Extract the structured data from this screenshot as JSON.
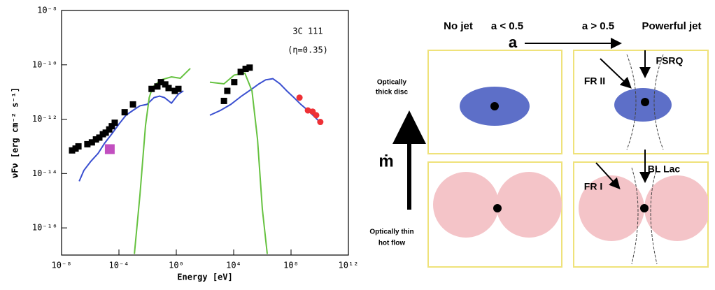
{
  "chart_data": {
    "type": "scatter",
    "title": "3C 111",
    "annotation": "(η=0.35)",
    "x_label": "Energy [eV]",
    "y_label": "νFν [erg cm⁻² s⁻¹]",
    "log_x": true,
    "log_y": true,
    "xlim": [
      1e-08,
      1000000000000.0
    ],
    "ylim": [
      1e-17,
      1e-08
    ],
    "xticks": [
      {
        "value": 1e-08,
        "label": "10⁻⁸"
      },
      {
        "value": 0.0001,
        "label": "10⁻⁴"
      },
      {
        "value": 1,
        "label": "10⁰"
      },
      {
        "value": 10000.0,
        "label": "10⁴"
      },
      {
        "value": 100000000.0,
        "label": "10⁸"
      },
      {
        "value": 1000000000000.0,
        "label": "10¹²"
      }
    ],
    "yticks": [
      {
        "value": 1e-16,
        "label": "10⁻¹⁶"
      },
      {
        "value": 1e-14,
        "label": "10⁻¹⁴"
      },
      {
        "value": 1e-12,
        "label": "10⁻¹²"
      },
      {
        "value": 1e-10,
        "label": "10⁻¹⁰"
      },
      {
        "value": 1e-08,
        "label": "10⁻⁸"
      }
    ],
    "series": [
      {
        "marker": "line",
        "color": "#3a4fd0",
        "x": [
          1.7e-07,
          3.6e-07,
          1.1e-06,
          3.5e-06,
          1e-05,
          3.2e-05,
          0.0001,
          0.00031,
          0.00095,
          0.0029,
          0.0089,
          0.028,
          0.068,
          0.15,
          0.46,
          1.4,
          3.1,
          null,
          220,
          1200,
          6300,
          35000,
          190000,
          580000,
          1700000.0,
          5400000.0,
          17000000.0,
          51000000.0,
          160000000.0,
          480000000.0,
          1500000000.0,
          4600000000.0,
          14000000000.0
        ],
        "values": [
          5.2e-15,
          1.3e-14,
          2.8e-14,
          5.5e-14,
          1.3e-13,
          2.9e-13,
          6.6e-13,
          1.4e-12,
          2.1e-12,
          3.1e-12,
          3.5e-12,
          6.2e-12,
          7.1e-12,
          6.2e-12,
          3.9e-12,
          8.3e-12,
          1.1e-11,
          null,
          1.4e-12,
          2.1e-12,
          3.5e-12,
          7.1e-12,
          1.3e-11,
          2e-11,
          2.8e-11,
          3.1e-11,
          2e-11,
          1.1e-11,
          6.2e-12,
          3.5e-12,
          2.1e-12,
          1.2e-12,
          6.6e-13
        ]
      },
      {
        "marker": "line",
        "color": "#66c240",
        "x": [
          0.0012,
          0.0029,
          0.0071,
          0.013,
          0.022,
          0.085,
          0.46,
          1.9,
          4.3,
          9.5,
          null,
          220,
          2100,
          11000,
          60000,
          190000,
          460000,
          1000000.0,
          2200000.0
        ],
        "values": [
          1.1e-17,
          1.6e-15,
          5.9e-13,
          6.2e-12,
          1.5e-11,
          2.8e-11,
          3.6e-11,
          3.2e-11,
          4.9e-11,
          7.4e-11,
          null,
          2.3e-11,
          2e-11,
          4.2e-11,
          4.9e-11,
          1.1e-11,
          1.8e-13,
          4.9e-16,
          1.1e-17
        ]
      },
      {
        "marker": "square",
        "color": "#000000",
        "x": [
          5.4e-08,
          9.5e-08,
          1.5e-07,
          6.3e-07,
          1.3e-06,
          2.5e-06,
          4.3e-06,
          7.6e-06,
          1.2e-05,
          2.1e-05,
          3.2e-05,
          5.1e-05,
          0.00025,
          0.00095,
          0.019,
          0.048,
          0.085,
          0.17,
          0.29,
          0.79,
          1.4,
          2100,
          3600,
          11000,
          31000,
          68000,
          130000
        ],
        "values": [
          7.1e-14,
          8.3e-14,
          1e-13,
          1.2e-13,
          1.4e-13,
          1.8e-13,
          2.1e-13,
          2.8e-13,
          3.2e-13,
          4.2e-13,
          5.5e-13,
          7.4e-13,
          1.8e-12,
          3.5e-12,
          1.3e-11,
          1.6e-11,
          2.3e-11,
          1.9e-11,
          1.4e-11,
          1.1e-11,
          1.3e-11,
          4.7e-12,
          1.1e-11,
          2.3e-11,
          5.5e-11,
          7.1e-11,
          7.9e-11
        ]
      },
      {
        "marker": "square",
        "color": "#c24fc0",
        "size": 14,
        "x": [
          2.3e-05
        ],
        "values": [
          7.9e-14
        ]
      },
      {
        "marker": "circle",
        "color": "#ee3035",
        "x": [
          390000000.0,
          1500000000.0,
          3200000000.0,
          5700000000.0,
          11000000000.0
        ],
        "values": [
          6.2e-12,
          2.1e-12,
          1.9e-12,
          1.4e-12,
          7.9e-13
        ]
      }
    ]
  },
  "diagram": {
    "top_labels": [
      "No jet",
      "a < 0.5",
      "a > 0.5",
      "Powerful jet"
    ],
    "spin_axis": "a",
    "accretion_axis": "ṁ",
    "top_state": [
      "Optically",
      "thick disc"
    ],
    "bottom_state": [
      "Optically thin",
      "hot flow"
    ],
    "classes": [
      "FR II",
      "FSRQ",
      "FR I",
      "BL Lac"
    ]
  }
}
